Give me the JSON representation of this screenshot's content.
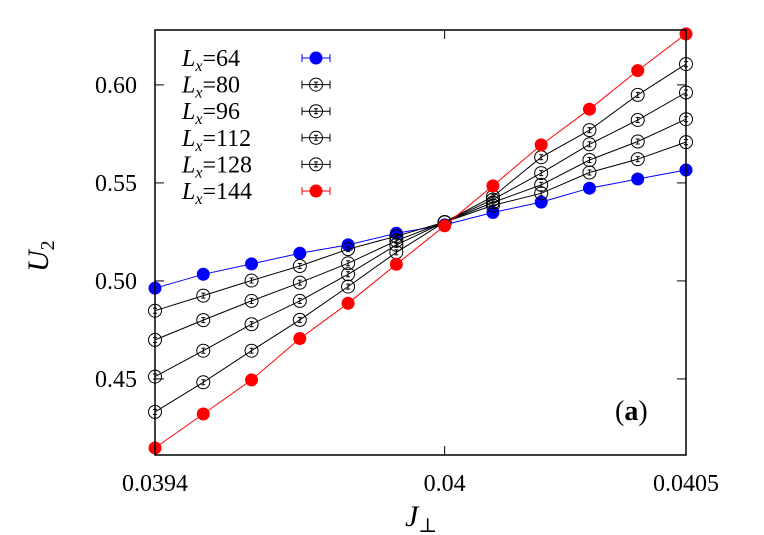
{
  "chart_data": {
    "type": "line",
    "title": "",
    "xlabel": "J",
    "xlabel_sub": "⊥",
    "ylabel": "U",
    "ylabel_sub": "2",
    "panel_label": "a",
    "xlim": [
      0.0394,
      0.0405
    ],
    "ylim": [
      0.4112,
      0.628
    ],
    "xticks": [
      0.0394,
      0.04,
      0.0405
    ],
    "xtick_labels": [
      "0.0394",
      "0.04",
      "0.0405"
    ],
    "yticks": [
      0.45,
      0.5,
      0.55,
      0.6
    ],
    "ytick_labels": [
      "0.45",
      "0.50",
      "0.55",
      "0.60"
    ],
    "grid": false,
    "legend_placement": "top-left",
    "x": [
      0.0394,
      0.0395,
      0.0396,
      0.0397,
      0.0398,
      0.0399,
      0.04,
      0.0401,
      0.0402,
      0.0403,
      0.0404,
      0.0405
    ],
    "series": [
      {
        "name": "L_x=64",
        "label_main": "L",
        "label_sub": "x",
        "label_rest": "=64",
        "color": "#0000ff",
        "marker": "filled-circle",
        "values": [
          0.4963,
          0.5034,
          0.5087,
          0.5141,
          0.5184,
          0.5243,
          0.5286,
          0.5349,
          0.5402,
          0.5473,
          0.552,
          0.5566
        ]
      },
      {
        "name": "L_x=80",
        "label_main": "L",
        "label_sub": "x",
        "label_rest": "=80",
        "color": "#000000",
        "marker": "open-circle",
        "values": [
          0.4848,
          0.4925,
          0.5002,
          0.5076,
          0.5162,
          0.5228,
          0.53,
          0.5385,
          0.5447,
          0.5553,
          0.5621,
          0.5708
        ]
      },
      {
        "name": "L_x=96",
        "label_main": "L",
        "label_sub": "x",
        "label_rest": "=96",
        "color": "#000000",
        "marker": "open-circle",
        "values": [
          0.4699,
          0.48,
          0.4898,
          0.4991,
          0.509,
          0.5205,
          0.53,
          0.54,
          0.549,
          0.5617,
          0.5711,
          0.5825
        ]
      },
      {
        "name": "L_x=112",
        "label_main": "L",
        "label_sub": "x",
        "label_rest": "=112",
        "color": "#000000",
        "marker": "open-circle",
        "values": [
          0.4512,
          0.4644,
          0.4779,
          0.4898,
          0.5034,
          0.5184,
          0.53,
          0.5415,
          0.555,
          0.5697,
          0.5821,
          0.5961
        ]
      },
      {
        "name": "L_x=128",
        "label_main": "L",
        "label_sub": "x",
        "label_rest": "=128",
        "color": "#000000",
        "marker": "open-circle",
        "values": [
          0.4332,
          0.4483,
          0.4644,
          0.4801,
          0.4971,
          0.5146,
          0.53,
          0.543,
          0.5631,
          0.5769,
          0.5949,
          0.6106
        ]
      },
      {
        "name": "L_x=144",
        "label_main": "L",
        "label_sub": "x",
        "label_rest": "=144",
        "color": "#ff0000",
        "marker": "filled-circle",
        "values": [
          0.4148,
          0.4321,
          0.4495,
          0.4706,
          0.4886,
          0.5085,
          0.5281,
          0.5485,
          0.5694,
          0.5876,
          0.6073,
          0.626
        ]
      }
    ]
  }
}
